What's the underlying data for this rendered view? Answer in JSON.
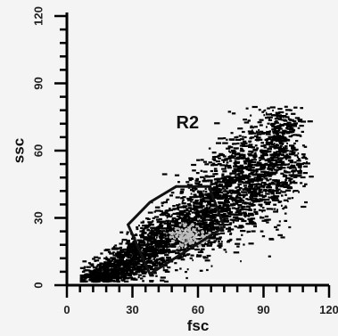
{
  "chart_data": {
    "type": "scatter",
    "title": "",
    "xlabel": "fsc",
    "ylabel": "ssc",
    "xlim": [
      0,
      120
    ],
    "ylim": [
      0,
      120
    ],
    "x_ticks": [
      0,
      30,
      60,
      90,
      120
    ],
    "y_ticks": [
      0,
      30,
      60,
      90,
      120
    ],
    "x_tick_labels": [
      "0",
      "30",
      "60",
      "90",
      "120"
    ],
    "y_tick_labels": [
      "0",
      "30",
      "60",
      "90",
      "120"
    ],
    "grid": false,
    "colors": {
      "points": "#000000",
      "density_core": "#bdbdbd",
      "axis": "#000000",
      "background": "#f4f4f4"
    },
    "gates": [
      {
        "name": "R2",
        "label_position": [
          50,
          70
        ],
        "polygon": [
          [
            28,
            27
          ],
          [
            38,
            37
          ],
          [
            50,
            44
          ],
          [
            65,
            44
          ],
          [
            72,
            26
          ],
          [
            38,
            5
          ]
        ]
      }
    ],
    "density_summary": {
      "approx_point_count": 3200,
      "bulk_x_range": [
        8,
        105
      ],
      "bulk_y_range": [
        3,
        78
      ],
      "densest_region_center": [
        55,
        22
      ]
    }
  }
}
